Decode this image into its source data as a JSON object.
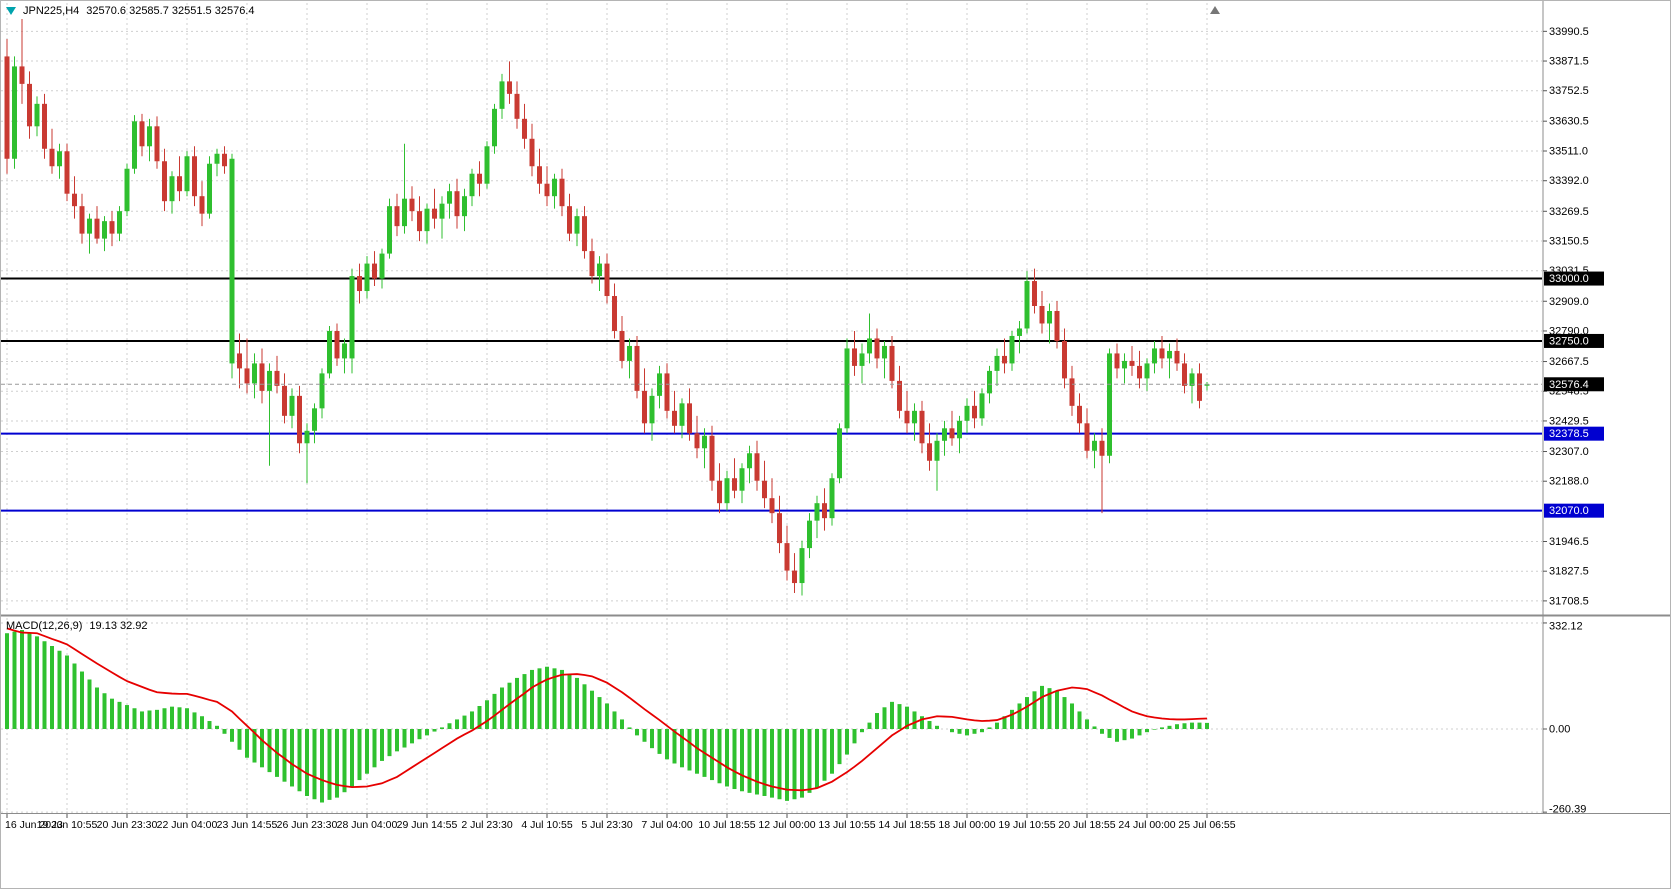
{
  "header": {
    "symbol": "JPN225,H4",
    "quote": "32570.6 32585.7 32551.5 32576.4"
  },
  "colors": {
    "candle_up": "#2FBF2F",
    "candle_down": "#C93A32",
    "macd_histogram": "#2FC12F",
    "macd_signal": "#E60000",
    "hline_black": "#000000",
    "hline_blue": "#0000D0",
    "grid": "#cfcfcf",
    "axis_text": "#000000",
    "tag_text": "#FFFFFF",
    "separator": "#8c8c8c",
    "symbol_icon": "#00A3AD"
  },
  "chart_data": {
    "type": "candlestick",
    "symbol": "JPN225",
    "timeframe": "H4",
    "ohlc_current": {
      "open": 32570.6,
      "high": 32585.7,
      "low": 32551.5,
      "close": 32576.4
    },
    "price_axis_ticks": [
      "33990.5",
      "33871.5",
      "33752.5",
      "33630.5",
      "33511.0",
      "33392.0",
      "33269.5",
      "33150.5",
      "33031.5",
      "32909.0",
      "32790.0",
      "32667.5",
      "32548.5",
      "32429.5",
      "32307.0",
      "32188.0",
      "31946.5",
      "31827.5",
      "31708.5"
    ],
    "time_axis_ticks": [
      "16 Jun 2023",
      "19 Jun 10:55",
      "20 Jun 23:30",
      "22 Jun 04:00",
      "23 Jun 14:55",
      "26 Jun 23:30",
      "28 Jun 04:00",
      "29 Jun 14:55",
      "2 Jul 23:30",
      "4 Jul 10:55",
      "5 Jul 23:30",
      "7 Jul 04:00",
      "10 Jul 18:55",
      "12 Jul 00:00",
      "13 Jul 10:55",
      "14 Jul 18:55",
      "18 Jul 00:00",
      "19 Jul 10:55",
      "20 Jul 18:55",
      "24 Jul 00:00",
      "25 Jul 06:55"
    ],
    "hlines": [
      {
        "price": 33000.0,
        "label": "33000.0",
        "color": "black"
      },
      {
        "price": 32750.0,
        "label": "32750.0",
        "color": "black"
      },
      {
        "price": 32378.5,
        "label": "32378.5",
        "color": "blue"
      },
      {
        "price": 32070.0,
        "label": "32070.0",
        "color": "blue"
      }
    ],
    "current_price": {
      "value": 32576.4,
      "label": "32576.4"
    },
    "candles": [
      [
        33890,
        33960,
        33420,
        33480
      ],
      [
        33480,
        33890,
        33440,
        33850
      ],
      [
        33850,
        34040,
        33700,
        33780
      ],
      [
        33780,
        33830,
        33560,
        33610
      ],
      [
        33610,
        33730,
        33570,
        33700
      ],
      [
        33700,
        33740,
        33480,
        33520
      ],
      [
        33520,
        33600,
        33420,
        33450
      ],
      [
        33450,
        33540,
        33400,
        33510
      ],
      [
        33510,
        33540,
        33310,
        33340
      ],
      [
        33340,
        33410,
        33240,
        33290
      ],
      [
        33290,
        33340,
        33140,
        33180
      ],
      [
        33180,
        33260,
        33100,
        33240
      ],
      [
        33240,
        33290,
        33140,
        33160
      ],
      [
        33160,
        33250,
        33110,
        33230
      ],
      [
        33230,
        33270,
        33130,
        33180
      ],
      [
        33180,
        33290,
        33150,
        33270
      ],
      [
        33270,
        33460,
        33250,
        33440
      ],
      [
        33440,
        33655,
        33420,
        33630
      ],
      [
        33630,
        33660,
        33490,
        33530
      ],
      [
        33530,
        33640,
        33470,
        33610
      ],
      [
        33610,
        33650,
        33440,
        33470
      ],
      [
        33470,
        33520,
        33270,
        33310
      ],
      [
        33310,
        33430,
        33260,
        33410
      ],
      [
        33410,
        33490,
        33310,
        33350
      ],
      [
        33350,
        33510,
        33330,
        33490
      ],
      [
        33490,
        33530,
        33290,
        33330
      ],
      [
        33330,
        33390,
        33210,
        33260
      ],
      [
        33260,
        33490,
        33240,
        33460
      ],
      [
        33460,
        33520,
        33410,
        33500
      ],
      [
        33500,
        33530,
        33420,
        33450
      ],
      [
        32660,
        33500,
        32600,
        33480
      ],
      [
        32700,
        32780,
        32560,
        32640
      ],
      [
        32640,
        32760,
        32540,
        32580
      ],
      [
        32580,
        32700,
        32520,
        32660
      ],
      [
        32660,
        32720,
        32500,
        32550
      ],
      [
        32550,
        32660,
        32250,
        32630
      ],
      [
        32630,
        32690,
        32540,
        32570
      ],
      [
        32570,
        32620,
        32420,
        32450
      ],
      [
        32450,
        32560,
        32400,
        32530
      ],
      [
        32530,
        32570,
        32300,
        32340
      ],
      [
        32340,
        32420,
        32180,
        32390
      ],
      [
        32390,
        32500,
        32340,
        32480
      ],
      [
        32480,
        32640,
        32440,
        32620
      ],
      [
        32620,
        32810,
        32600,
        32790
      ],
      [
        32790,
        32820,
        32650,
        32680
      ],
      [
        32680,
        32760,
        32620,
        32740
      ],
      [
        32680,
        33040,
        32620,
        33010
      ],
      [
        33010,
        33060,
        32900,
        32950
      ],
      [
        32950,
        33090,
        32920,
        33060
      ],
      [
        33060,
        33110,
        32970,
        33000
      ],
      [
        33000,
        33120,
        32960,
        33100
      ],
      [
        33100,
        33320,
        33080,
        33290
      ],
      [
        33290,
        33340,
        33170,
        33210
      ],
      [
        33210,
        33540,
        33180,
        33320
      ],
      [
        33320,
        33370,
        33230,
        33270
      ],
      [
        33270,
        33330,
        33150,
        33190
      ],
      [
        33190,
        33300,
        33140,
        33280
      ],
      [
        33280,
        33360,
        33200,
        33240
      ],
      [
        33240,
        33330,
        33160,
        33300
      ],
      [
        33300,
        33380,
        33240,
        33350
      ],
      [
        33350,
        33400,
        33200,
        33250
      ],
      [
        33250,
        33360,
        33190,
        33330
      ],
      [
        33330,
        33440,
        33290,
        33420
      ],
      [
        33420,
        33470,
        33330,
        33380
      ],
      [
        33380,
        33550,
        33360,
        33530
      ],
      [
        33530,
        33700,
        33500,
        33680
      ],
      [
        33680,
        33820,
        33640,
        33790
      ],
      [
        33790,
        33870,
        33700,
        33740
      ],
      [
        33740,
        33790,
        33600,
        33640
      ],
      [
        33640,
        33700,
        33520,
        33560
      ],
      [
        33560,
        33620,
        33410,
        33450
      ],
      [
        33450,
        33520,
        33340,
        33380
      ],
      [
        33380,
        33450,
        33290,
        33330
      ],
      [
        33330,
        33420,
        33280,
        33400
      ],
      [
        33400,
        33440,
        33250,
        33290
      ],
      [
        33290,
        33340,
        33150,
        33180
      ],
      [
        33180,
        33280,
        33130,
        33250
      ],
      [
        33250,
        33290,
        33080,
        33110
      ],
      [
        33110,
        33160,
        32980,
        33010
      ],
      [
        33010,
        33090,
        32950,
        33060
      ],
      [
        33060,
        33100,
        32900,
        32930
      ],
      [
        32930,
        32980,
        32760,
        32790
      ],
      [
        32790,
        32850,
        32640,
        32670
      ],
      [
        32670,
        32760,
        32600,
        32730
      ],
      [
        32730,
        32770,
        32520,
        32550
      ],
      [
        32550,
        32640,
        32380,
        32420
      ],
      [
        32420,
        32560,
        32350,
        32530
      ],
      [
        32530,
        32650,
        32480,
        32620
      ],
      [
        32620,
        32660,
        32440,
        32470
      ],
      [
        32470,
        32550,
        32380,
        32410
      ],
      [
        32410,
        32520,
        32360,
        32500
      ],
      [
        32500,
        32560,
        32350,
        32380
      ],
      [
        32380,
        32450,
        32280,
        32320
      ],
      [
        32320,
        32400,
        32240,
        32370
      ],
      [
        32370,
        32410,
        32150,
        32190
      ],
      [
        32190,
        32260,
        32060,
        32100
      ],
      [
        32100,
        32230,
        32070,
        32200
      ],
      [
        32200,
        32280,
        32120,
        32150
      ],
      [
        32150,
        32260,
        32100,
        32240
      ],
      [
        32240,
        32330,
        32180,
        32300
      ],
      [
        32300,
        32350,
        32150,
        32190
      ],
      [
        32190,
        32270,
        32080,
        32120
      ],
      [
        32120,
        32200,
        32020,
        32060
      ],
      [
        32060,
        32130,
        31900,
        31940
      ],
      [
        31940,
        32010,
        31790,
        31830
      ],
      [
        31830,
        31900,
        31740,
        31780
      ],
      [
        31780,
        31950,
        31730,
        31920
      ],
      [
        31920,
        32060,
        31880,
        32030
      ],
      [
        32030,
        32130,
        31960,
        32100
      ],
      [
        32100,
        32160,
        31990,
        32040
      ],
      [
        32040,
        32220,
        32010,
        32200
      ],
      [
        32200,
        32420,
        32180,
        32400
      ],
      [
        32400,
        32760,
        32380,
        32720
      ],
      [
        32720,
        32790,
        32610,
        32650
      ],
      [
        32650,
        32740,
        32580,
        32700
      ],
      [
        32700,
        32860,
        32660,
        32760
      ],
      [
        32760,
        32800,
        32640,
        32680
      ],
      [
        32680,
        32750,
        32600,
        32730
      ],
      [
        32730,
        32770,
        32560,
        32590
      ],
      [
        32590,
        32650,
        32440,
        32470
      ],
      [
        32470,
        32550,
        32380,
        32420
      ],
      [
        32420,
        32500,
        32350,
        32470
      ],
      [
        32470,
        32510,
        32300,
        32340
      ],
      [
        32340,
        32420,
        32230,
        32270
      ],
      [
        32270,
        32380,
        32150,
        32350
      ],
      [
        32350,
        32430,
        32290,
        32400
      ],
      [
        32400,
        32470,
        32330,
        32360
      ],
      [
        32360,
        32450,
        32300,
        32430
      ],
      [
        32430,
        32520,
        32380,
        32490
      ],
      [
        32490,
        32550,
        32400,
        32440
      ],
      [
        32440,
        32560,
        32410,
        32540
      ],
      [
        32540,
        32650,
        32500,
        32630
      ],
      [
        32630,
        32720,
        32570,
        32690
      ],
      [
        32690,
        32760,
        32620,
        32660
      ],
      [
        32660,
        32790,
        32630,
        32770
      ],
      [
        32770,
        32830,
        32700,
        32800
      ],
      [
        32800,
        33030,
        32780,
        32990
      ],
      [
        32990,
        33040,
        32860,
        32890
      ],
      [
        32890,
        32950,
        32780,
        32820
      ],
      [
        32820,
        32900,
        32740,
        32870
      ],
      [
        32870,
        32910,
        32720,
        32750
      ],
      [
        32750,
        32800,
        32560,
        32600
      ],
      [
        32600,
        32650,
        32450,
        32490
      ],
      [
        32490,
        32540,
        32380,
        32420
      ],
      [
        32420,
        32480,
        32280,
        32310
      ],
      [
        32310,
        32380,
        32240,
        32350
      ],
      [
        32350,
        32400,
        32060,
        32290
      ],
      [
        32290,
        32720,
        32260,
        32700
      ],
      [
        32700,
        32740,
        32600,
        32640
      ],
      [
        32640,
        32700,
        32580,
        32670
      ],
      [
        32670,
        32730,
        32610,
        32650
      ],
      [
        32650,
        32710,
        32560,
        32600
      ],
      [
        32600,
        32680,
        32550,
        32660
      ],
      [
        32660,
        32750,
        32620,
        32720
      ],
      [
        32720,
        32770,
        32640,
        32680
      ],
      [
        32680,
        32740,
        32600,
        32710
      ],
      [
        32710,
        32760,
        32630,
        32660
      ],
      [
        32660,
        32700,
        32540,
        32570
      ],
      [
        32570,
        32640,
        32500,
        32620
      ],
      [
        32620,
        32660,
        32480,
        32510
      ],
      [
        32570.6,
        32585.7,
        32551.5,
        32576.4
      ]
    ],
    "macd": {
      "label": "MACD(12,26,9)",
      "values": "19.13 32.92",
      "value_main": 19.13,
      "value_signal": 32.92,
      "axis_ticks": [
        "332.12",
        "0.00",
        "-260.39"
      ],
      "axis_values": [
        332.12,
        0,
        -260.39
      ],
      "histogram": [
        300,
        305,
        310,
        300,
        290,
        275,
        260,
        245,
        230,
        205,
        180,
        155,
        130,
        112,
        95,
        85,
        75,
        65,
        55,
        58,
        60,
        65,
        70,
        68,
        65,
        52,
        40,
        25,
        10,
        -15,
        -40,
        -65,
        -90,
        -105,
        -120,
        -135,
        -150,
        -165,
        -180,
        -195,
        -210,
        -220,
        -230,
        -222,
        -215,
        -198,
        -180,
        -160,
        -140,
        -120,
        -100,
        -85,
        -70,
        -58,
        -45,
        -32,
        -20,
        -8,
        5,
        18,
        30,
        42,
        55,
        72,
        90,
        110,
        130,
        145,
        160,
        172,
        185,
        190,
        195,
        190,
        185,
        172,
        160,
        140,
        120,
        100,
        80,
        55,
        30,
        5,
        -20,
        -40,
        -60,
        -78,
        -95,
        -108,
        -120,
        -130,
        -140,
        -150,
        -160,
        -170,
        -180,
        -188,
        -195,
        -200,
        -205,
        -210,
        -215,
        -220,
        -225,
        -220,
        -215,
        -200,
        -185,
        -162,
        -140,
        -110,
        -80,
        -45,
        -10,
        20,
        50,
        68,
        85,
        78,
        70,
        55,
        40,
        25,
        10,
        0,
        -10,
        -15,
        -20,
        -15,
        -10,
        5,
        20,
        40,
        60,
        80,
        100,
        118,
        135,
        128,
        120,
        100,
        80,
        55,
        30,
        8,
        -15,
        -28,
        -40,
        -35,
        -30,
        -20,
        -10,
        -2,
        5,
        10,
        15,
        18,
        20,
        20,
        19.13
      ],
      "signal": [
        315,
        308,
        302,
        301,
        300,
        291,
        282,
        274,
        265,
        250,
        235,
        220,
        205,
        191,
        177,
        163,
        150,
        141,
        132,
        123,
        115,
        113,
        111,
        110,
        110,
        104,
        98,
        91,
        85,
        70,
        55,
        32,
        10,
        -12,
        -35,
        -55,
        -75,
        -92,
        -110,
        -125,
        -140,
        -150,
        -160,
        -168,
        -175,
        -179,
        -182,
        -181,
        -180,
        -175,
        -170,
        -160,
        -150,
        -135,
        -120,
        -105,
        -90,
        -75,
        -60,
        -45,
        -30,
        -17,
        -5,
        10,
        25,
        42,
        60,
        78,
        95,
        112,
        130,
        143,
        155,
        163,
        170,
        171,
        172,
        169,
        165,
        155,
        145,
        130,
        115,
        98,
        80,
        62,
        45,
        28,
        10,
        -8,
        -25,
        -42,
        -60,
        -75,
        -90,
        -105,
        -120,
        -133,
        -145,
        -155,
        -165,
        -173,
        -180,
        -185,
        -190,
        -191,
        -192,
        -189,
        -185,
        -175,
        -165,
        -150,
        -135,
        -118,
        -100,
        -80,
        -60,
        -40,
        -20,
        -5,
        10,
        20,
        30,
        35,
        40,
        39,
        38,
        34,
        30,
        27,
        25,
        26,
        28,
        36,
        45,
        57,
        70,
        85,
        100,
        110,
        120,
        125,
        130,
        128,
        125,
        115,
        105,
        92,
        80,
        67,
        55,
        47,
        40,
        36,
        33,
        31,
        30,
        30,
        31,
        32,
        32.92
      ]
    }
  }
}
